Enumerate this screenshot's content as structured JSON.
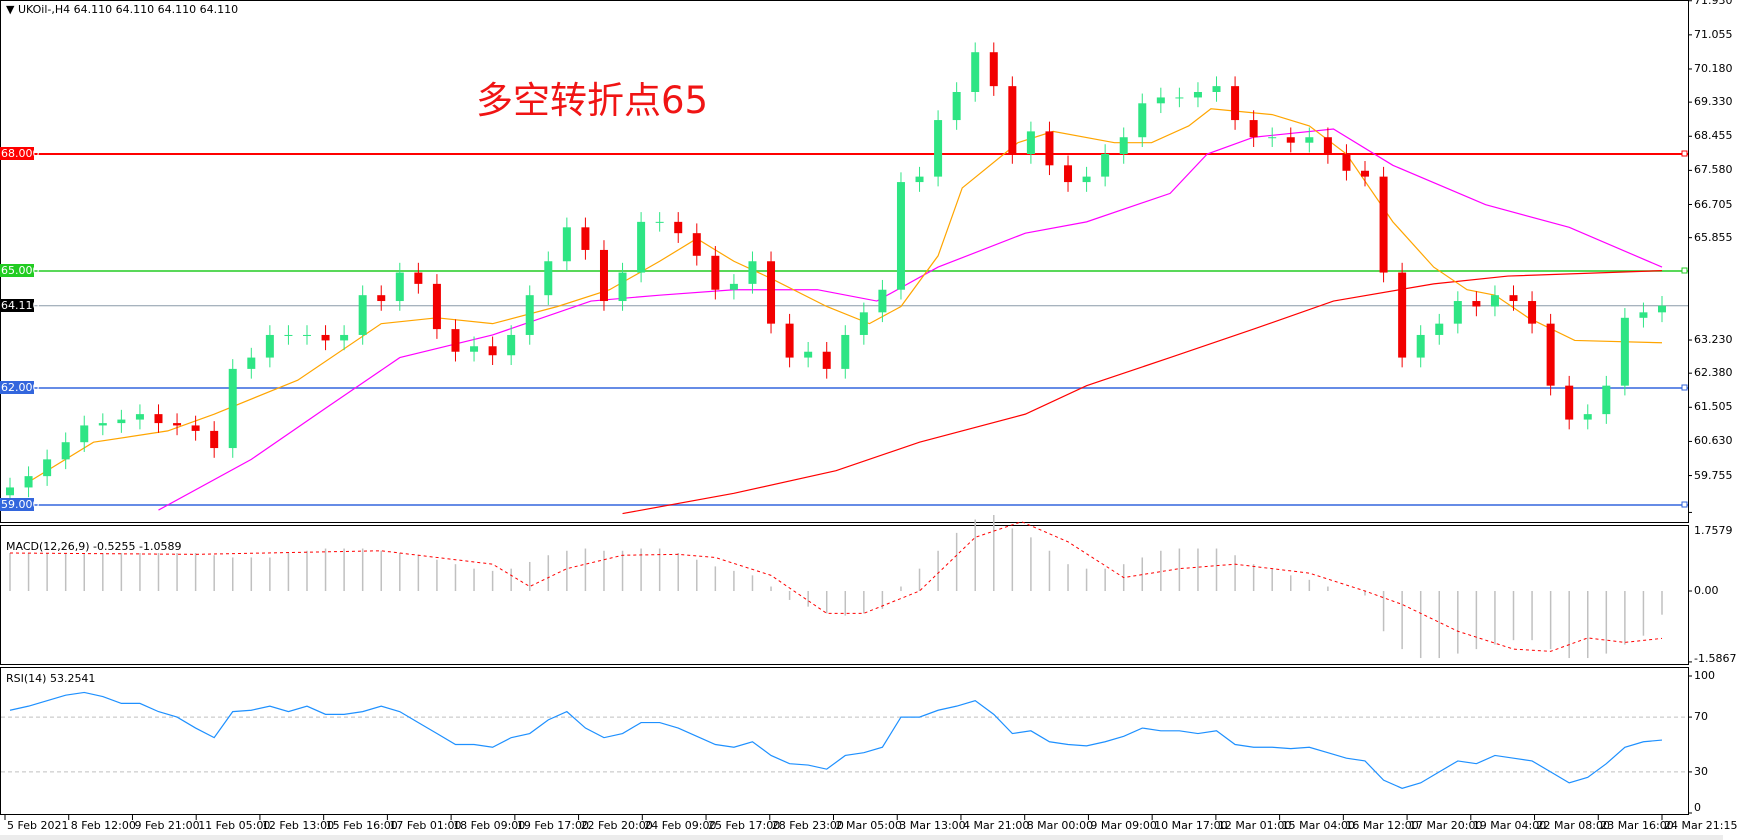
{
  "header": {
    "symbol": "UKOil-,H4",
    "ohlc": "64.110 64.110 64.110 64.110"
  },
  "annotation": "多空转折点65",
  "colors": {
    "up": "#2ee584",
    "down": "#f20000",
    "ma_fast": "#ffa500",
    "ma_mid": "#ff00ff",
    "ma_slow": "#ff0000",
    "line_68": "#ff0000",
    "line_65": "#22cc22",
    "line_62": "#3366dd",
    "line_59": "#3366dd",
    "current": "#8a9aa8",
    "rsi": "#1e90ff",
    "macd_hist": "#c0c0c0",
    "macd_signal": "#ff0000"
  },
  "price_axis": {
    "ticks": [
      "71.930",
      "71.055",
      "70.180",
      "69.330",
      "68.455",
      "67.580",
      "66.705",
      "65.855",
      "63.230",
      "62.380",
      "61.505",
      "60.630",
      "59.755"
    ],
    "tick_values": [
      71.93,
      71.055,
      70.18,
      69.33,
      68.455,
      67.58,
      66.705,
      65.855,
      63.23,
      62.38,
      61.505,
      60.63,
      59.755
    ]
  },
  "levels": [
    {
      "value": 68.0,
      "label": "68.000",
      "color": "#ff0000"
    },
    {
      "value": 65.0,
      "label": "65.000",
      "color": "#22cc22"
    },
    {
      "value": 62.0,
      "label": "62.000",
      "color": "#3366dd"
    },
    {
      "value": 59.0,
      "label": "59.000",
      "color": "#3366dd"
    }
  ],
  "current_price": {
    "value": 64.11,
    "label": "64.110"
  },
  "time_axis": [
    "5 Feb 2021",
    "8 Feb 12:00",
    "9 Feb 21:00",
    "11 Feb 05:00",
    "12 Feb 13:00",
    "15 Feb 16:00",
    "17 Feb 01:00",
    "18 Feb 09:00",
    "19 Feb 17:00",
    "22 Feb 20:00",
    "24 Feb 09:00",
    "25 Feb 17:00",
    "28 Feb 23:00",
    "2 Mar 05:00",
    "3 Mar 13:00",
    "4 Mar 21:00",
    "8 Mar 00:00",
    "9 Mar 09:00",
    "10 Mar 17:00",
    "12 Mar 01:00",
    "15 Mar 04:00",
    "16 Mar 12:00",
    "17 Mar 20:00",
    "19 Mar 04:00",
    "22 Mar 08:00",
    "23 Mar 16:00",
    "24 Mar 21:15"
  ],
  "macd": {
    "title": "MACD(12,26,9) -0.5255 -1.0589",
    "ticks": [
      "1.7579",
      "0.00",
      "-1.5867"
    ],
    "range": [
      -1.5867,
      1.7579
    ]
  },
  "rsi": {
    "title": "RSI(14) 53.2541",
    "ticks": [
      "100",
      "70",
      "30",
      "0"
    ],
    "levels": [
      70,
      30
    ]
  },
  "chart_data": {
    "type": "candlestick",
    "timeframe": "H4",
    "ylim": [
      59.0,
      71.93
    ],
    "closes": [
      59.45,
      59.74,
      60.17,
      60.61,
      61.04,
      61.1,
      61.19,
      61.33,
      61.1,
      61.04,
      60.9,
      60.46,
      62.49,
      62.78,
      63.36,
      63.36,
      63.36,
      63.22,
      63.36,
      64.38,
      64.23,
      64.96,
      64.67,
      63.51,
      62.93,
      63.07,
      62.84,
      63.36,
      64.38,
      65.25,
      66.12,
      65.54,
      64.23,
      64.96,
      66.26,
      66.26,
      65.97,
      65.39,
      64.52,
      64.67,
      65.25,
      63.65,
      62.78,
      62.93,
      62.49,
      63.36,
      63.94,
      64.52,
      67.28,
      67.42,
      68.87,
      69.59,
      70.61,
      69.74,
      68.0,
      68.58,
      67.71,
      67.28,
      67.42,
      68.0,
      68.43,
      69.3,
      69.45,
      69.45,
      69.59,
      69.74,
      68.87,
      68.43,
      68.43,
      68.29,
      68.43,
      68.0,
      67.57,
      67.42,
      64.96,
      62.78,
      63.36,
      63.65,
      64.23,
      64.09,
      64.38,
      64.23,
      63.65,
      62.06,
      61.19,
      61.33,
      62.06,
      63.8,
      63.94,
      64.11
    ],
    "ma_fast": [
      [
        1,
        59.59
      ],
      [
        4.5,
        60.61
      ],
      [
        8.5,
        60.9
      ],
      [
        11,
        61.33
      ],
      [
        15.5,
        62.2
      ],
      [
        20,
        63.65
      ],
      [
        23,
        63.8
      ],
      [
        26,
        63.65
      ],
      [
        29.5,
        64.09
      ],
      [
        32.3,
        64.52
      ],
      [
        35,
        65.25
      ],
      [
        37,
        65.83
      ],
      [
        39,
        65.25
      ],
      [
        41,
        64.81
      ],
      [
        44,
        64.09
      ],
      [
        46.3,
        63.65
      ],
      [
        48,
        64.09
      ],
      [
        50,
        65.39
      ],
      [
        51.3,
        67.13
      ],
      [
        54.3,
        68.29
      ],
      [
        56.2,
        68.58
      ],
      [
        59.5,
        68.29
      ],
      [
        61.5,
        68.29
      ],
      [
        63.5,
        68.72
      ],
      [
        64.7,
        69.16
      ],
      [
        68,
        69.01
      ],
      [
        70,
        68.72
      ],
      [
        72,
        68.0
      ],
      [
        74.5,
        66.26
      ],
      [
        76.7,
        65.1
      ],
      [
        78.5,
        64.52
      ],
      [
        80,
        64.38
      ],
      [
        81.8,
        63.8
      ],
      [
        84.3,
        63.22
      ],
      [
        89,
        63.16
      ]
    ],
    "ma_mid": [
      [
        8,
        58.87
      ],
      [
        13,
        60.17
      ],
      [
        17,
        61.48
      ],
      [
        21,
        62.78
      ],
      [
        26,
        63.36
      ],
      [
        31.3,
        64.23
      ],
      [
        35,
        64.38
      ],
      [
        39,
        64.52
      ],
      [
        43.5,
        64.52
      ],
      [
        46.7,
        64.23
      ],
      [
        50,
        65.1
      ],
      [
        54.7,
        65.97
      ],
      [
        58,
        66.26
      ],
      [
        62.5,
        66.99
      ],
      [
        64.5,
        68.0
      ],
      [
        67,
        68.43
      ],
      [
        71.3,
        68.64
      ],
      [
        74.5,
        67.71
      ],
      [
        79.5,
        66.7
      ],
      [
        84,
        66.12
      ],
      [
        89,
        65.1
      ]
    ],
    "ma_slow": [
      [
        33,
        58.78
      ],
      [
        39,
        59.3
      ],
      [
        44.5,
        59.88
      ],
      [
        49,
        60.61
      ],
      [
        54.7,
        61.33
      ],
      [
        58,
        62.06
      ],
      [
        62.5,
        62.78
      ],
      [
        67,
        63.51
      ],
      [
        71.3,
        64.23
      ],
      [
        76.7,
        64.67
      ],
      [
        80.7,
        64.87
      ],
      [
        89,
        65.01
      ]
    ],
    "macd_hist": [
      0.85,
      0.85,
      0.85,
      0.85,
      0.85,
      0.85,
      0.85,
      0.85,
      0.85,
      0.85,
      0.85,
      0.8,
      0.75,
      0.75,
      0.75,
      0.85,
      0.9,
      0.95,
      0.95,
      0.95,
      0.9,
      0.85,
      0.8,
      0.7,
      0.6,
      0.5,
      0.45,
      0.5,
      0.65,
      0.8,
      0.9,
      0.95,
      0.9,
      0.9,
      0.95,
      0.95,
      0.85,
      0.7,
      0.55,
      0.45,
      0.35,
      0.1,
      -0.2,
      -0.35,
      -0.5,
      -0.55,
      -0.5,
      -0.4,
      0.1,
      0.5,
      0.9,
      1.3,
      1.6,
      1.7,
      1.4,
      1.2,
      0.9,
      0.6,
      0.5,
      0.5,
      0.6,
      0.75,
      0.9,
      0.95,
      0.95,
      0.95,
      0.8,
      0.6,
      0.5,
      0.35,
      0.25,
      0.1,
      0.0,
      -0.1,
      -0.9,
      -1.3,
      -1.5,
      -1.5,
      -1.4,
      -1.3,
      -1.2,
      -1.1,
      -1.1,
      -1.3,
      -1.5,
      -1.5,
      -1.4,
      -1.2,
      -1.0,
      -0.53
    ],
    "macd_signal": [
      [
        0,
        0.85
      ],
      [
        10,
        0.82
      ],
      [
        20,
        0.9
      ],
      [
        26,
        0.6
      ],
      [
        28,
        0.1
      ],
      [
        30,
        0.5
      ],
      [
        33,
        0.8
      ],
      [
        36,
        0.82
      ],
      [
        38,
        0.75
      ],
      [
        41,
        0.35
      ],
      [
        44,
        -0.5
      ],
      [
        46,
        -0.5
      ],
      [
        49,
        0.0
      ],
      [
        52,
        1.2
      ],
      [
        54.5,
        1.55
      ],
      [
        57,
        1.1
      ],
      [
        60,
        0.3
      ],
      [
        63,
        0.5
      ],
      [
        66,
        0.6
      ],
      [
        70,
        0.4
      ],
      [
        73,
        0.0
      ],
      [
        75,
        -0.3
      ],
      [
        78,
        -0.9
      ],
      [
        81,
        -1.3
      ],
      [
        83,
        -1.35
      ],
      [
        85,
        -1.05
      ],
      [
        87,
        -1.15
      ],
      [
        89,
        -1.06
      ]
    ],
    "rsi": [
      75,
      78,
      82,
      86,
      88,
      85,
      80,
      80,
      74,
      70,
      62,
      55,
      74,
      75,
      78,
      74,
      78,
      72,
      72,
      74,
      78,
      74,
      66,
      58,
      50,
      50,
      48,
      55,
      58,
      68,
      74,
      62,
      55,
      58,
      66,
      66,
      62,
      56,
      50,
      48,
      52,
      42,
      36,
      35,
      32,
      42,
      44,
      48,
      70,
      70,
      75,
      78,
      82,
      72,
      58,
      60,
      52,
      50,
      49,
      52,
      56,
      62,
      60,
      60,
      58,
      60,
      50,
      48,
      48,
      47,
      48,
      44,
      40,
      38,
      24,
      18,
      22,
      30,
      38,
      36,
      42,
      40,
      38,
      30,
      22,
      26,
      36,
      48,
      52,
      53.25
    ]
  }
}
